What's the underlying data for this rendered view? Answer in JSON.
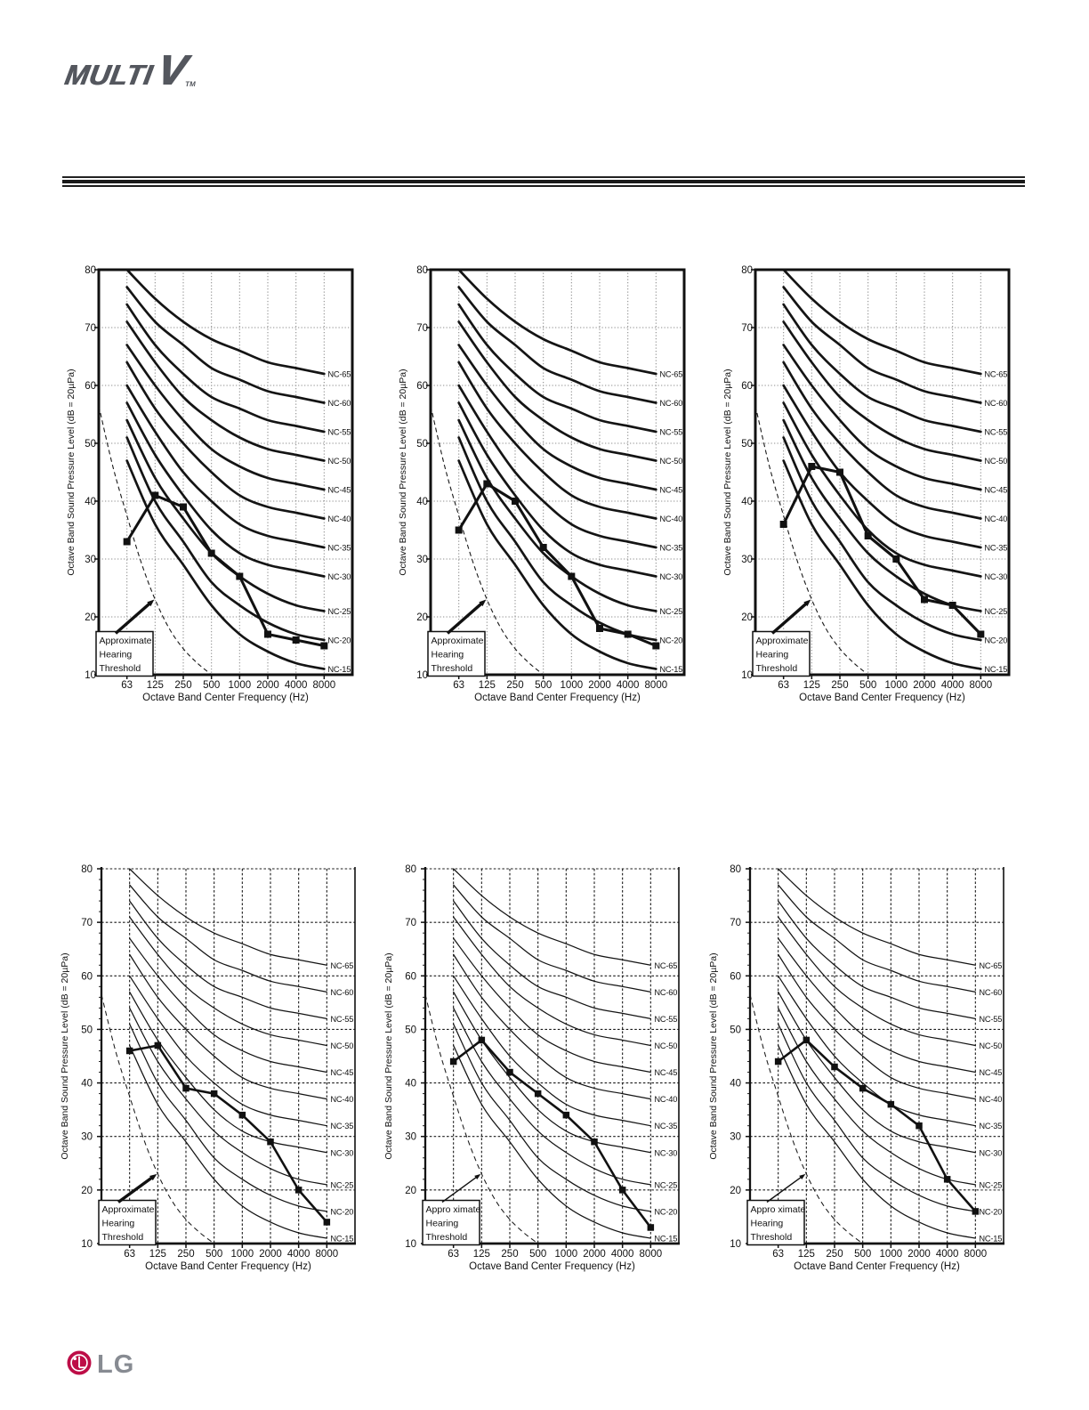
{
  "page": {
    "brand": {
      "word": "MULTI",
      "letter": "V",
      "tm": "TM"
    },
    "footer": {
      "logo": "LG"
    }
  },
  "chart_defaults": {
    "xlabel": "Octave Band Center Frequency (Hz)",
    "ylabel": "Octave Band Sound Pressure Level (dB = 20µPa)",
    "x_ticks": [
      "63",
      "125",
      "250",
      "500",
      "1000",
      "2000",
      "4000",
      "8000"
    ],
    "y_ticks": [
      10,
      20,
      30,
      40,
      50,
      60,
      70,
      80
    ],
    "ylim": [
      10,
      80
    ],
    "nc_curves": [
      {
        "name": "NC-65",
        "values": [
          80,
          75,
          71,
          68,
          66,
          64,
          63,
          62
        ]
      },
      {
        "name": "NC-60",
        "values": [
          77,
          71,
          67,
          63,
          61,
          59,
          58,
          57
        ]
      },
      {
        "name": "NC-55",
        "values": [
          74,
          67,
          62,
          58,
          56,
          54,
          53,
          52
        ]
      },
      {
        "name": "NC-50",
        "values": [
          71,
          64,
          58,
          54,
          51,
          49,
          48,
          47
        ]
      },
      {
        "name": "NC-45",
        "values": [
          67,
          60,
          54,
          49,
          46,
          44,
          43,
          42
        ]
      },
      {
        "name": "NC-40",
        "values": [
          64,
          56,
          50,
          45,
          41,
          39,
          38,
          37
        ]
      },
      {
        "name": "NC-35",
        "values": [
          60,
          52,
          45,
          40,
          36,
          34,
          33,
          32
        ]
      },
      {
        "name": "NC-30",
        "values": [
          57,
          48,
          41,
          35,
          31,
          29,
          28,
          27
        ]
      },
      {
        "name": "NC-25",
        "values": [
          54,
          44,
          37,
          31,
          27,
          24,
          22,
          21
        ]
      },
      {
        "name": "NC-20",
        "values": [
          51,
          40,
          33,
          26,
          22,
          19,
          17,
          16
        ]
      },
      {
        "name": "NC-15",
        "values": [
          47,
          36,
          29,
          22,
          17,
          14,
          12,
          11
        ]
      }
    ],
    "hearing_threshold": {
      "band_positions": [
        0,
        0.5,
        1,
        1.5,
        2,
        2.5,
        3,
        3.5,
        3.95
      ],
      "values": [
        56.5,
        46,
        37.5,
        29.5,
        23,
        18,
        14.5,
        12,
        10.2
      ]
    },
    "ink": "#1a1a1a"
  },
  "chart_data": [
    {
      "type": "line",
      "position": "top-left",
      "curve_weight": "thick",
      "grid": "dotted-gray",
      "measured": {
        "marker": "square",
        "values": [
          33,
          41,
          39,
          31,
          27,
          17,
          16,
          15
        ]
      },
      "annotation": {
        "lines": [
          "Approximate",
          "Hearing",
          "Threshold"
        ],
        "arrow": "thick"
      }
    },
    {
      "type": "line",
      "position": "top-middle",
      "curve_weight": "thick",
      "grid": "dotted-gray",
      "measured": {
        "marker": "square",
        "values": [
          35,
          43,
          40,
          32,
          27,
          18,
          17,
          15
        ]
      },
      "annotation": {
        "lines": [
          "Approximate",
          "Hearing",
          "Threshold"
        ],
        "arrow": "thick"
      }
    },
    {
      "type": "line",
      "position": "top-right",
      "curve_weight": "thick",
      "grid": "dotted-gray",
      "measured": {
        "marker": "square",
        "values": [
          36,
          46,
          45,
          34,
          30,
          23,
          22,
          17
        ]
      },
      "annotation": {
        "lines": [
          "Approximate",
          "Hearing",
          "Threshold"
        ],
        "arrow": "thick"
      }
    },
    {
      "type": "line",
      "position": "bottom-left",
      "curve_weight": "thin",
      "grid": "dashed-black",
      "measured": {
        "marker": "square",
        "values": [
          46,
          47,
          39,
          38,
          34,
          29,
          20,
          14
        ]
      },
      "annotation": {
        "lines": [
          "Approximate",
          "Hearing",
          "Threshold"
        ],
        "arrow": "thick"
      }
    },
    {
      "type": "line",
      "position": "bottom-middle",
      "curve_weight": "thin",
      "grid": "dashed-black",
      "measured": {
        "marker": "square",
        "values": [
          44,
          48,
          42,
          38,
          34,
          29,
          20,
          13
        ]
      },
      "annotation": {
        "lines": [
          "Appro ximate",
          "Hearing",
          "Threshold"
        ],
        "arrow": "thin"
      }
    },
    {
      "type": "line",
      "position": "bottom-right",
      "curve_weight": "thin",
      "grid": "dashed-black",
      "measured": {
        "marker": "square",
        "values": [
          44,
          48,
          43,
          39,
          36,
          32,
          22,
          16
        ]
      },
      "annotation": {
        "lines": [
          "Appro ximate",
          "Hearing",
          "Threshold"
        ],
        "arrow": "thin"
      }
    }
  ]
}
